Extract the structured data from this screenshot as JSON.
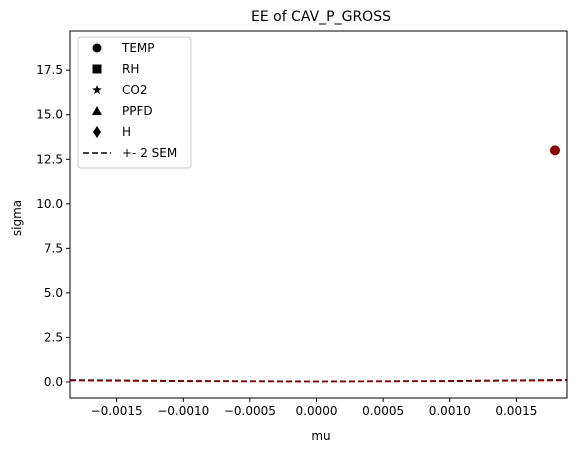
{
  "chart_data": {
    "type": "scatter",
    "title": "EE of CAV_P_GROSS",
    "xlabel": "mu",
    "ylabel": "sigma",
    "xlim": [
      -0.00185,
      0.00188
    ],
    "ylim": [
      -0.9,
      19.7
    ],
    "x_ticks": [
      -0.0015,
      -0.001,
      -0.0005,
      0.0,
      0.0005,
      0.001,
      0.0015
    ],
    "x_tick_labels": [
      "−0.0015",
      "−0.0010",
      "−0.0005",
      "0.0000",
      "0.0005",
      "0.0010",
      "0.0015"
    ],
    "y_ticks": [
      0,
      2.5,
      5,
      7.5,
      10,
      12.5,
      15,
      17.5
    ],
    "y_tick_labels": [
      "0.0",
      "2.5",
      "5.0",
      "7.5",
      "10.0",
      "12.5",
      "15.0",
      "17.5"
    ],
    "grid": false,
    "legend_position": "top-left",
    "legend": [
      {
        "label": "TEMP",
        "marker": "circle"
      },
      {
        "label": "RH",
        "marker": "square"
      },
      {
        "label": "CO2",
        "marker": "star"
      },
      {
        "label": "PPFD",
        "marker": "triangle"
      },
      {
        "label": "H",
        "marker": "diamond"
      },
      {
        "label": "+- 2 SEM",
        "marker": "dashed-line"
      }
    ],
    "points": [
      {
        "series": "TEMP",
        "x": 0.00179,
        "y": 13.0,
        "color": "#8b0000"
      }
    ],
    "sem_lines": [
      {
        "color": "#000000",
        "x": [
          -0.00185,
          -0.001,
          0.0,
          0.001,
          0.00188
        ],
        "y": [
          0.11,
          0.06,
          0.03,
          0.06,
          0.12
        ]
      },
      {
        "color": "#8b0000",
        "x": [
          -0.00185,
          -0.001,
          0.0,
          0.001,
          0.00188
        ],
        "y": [
          0.08,
          0.04,
          0.02,
          0.04,
          0.09
        ]
      }
    ]
  }
}
